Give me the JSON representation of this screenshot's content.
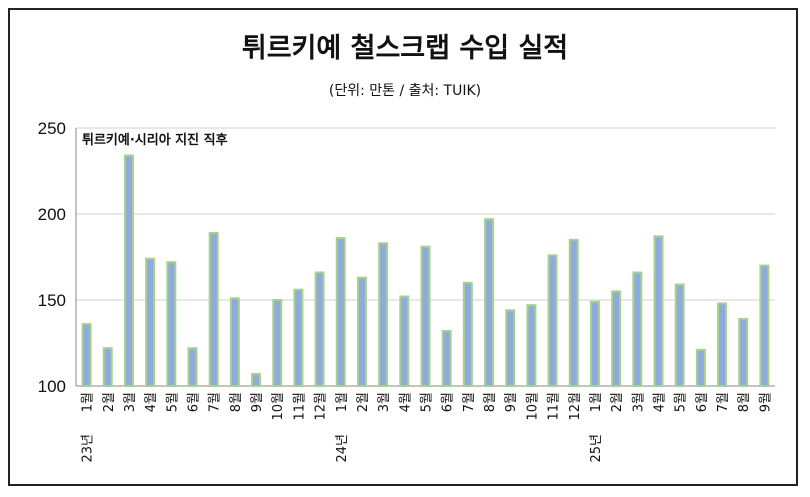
{
  "title": "튀르키예 철스크랩 수입 실적",
  "subtitle": "(단위: 만톤 / 출처: TUIK)",
  "chart_data": {
    "type": "bar",
    "title": "튀르키예 철스크랩 수입 실적",
    "subtitle": "(단위: 만톤 / 출처: TUIK)",
    "xlabel": "",
    "ylabel": "",
    "ylim": [
      100,
      250
    ],
    "yticks": [
      100,
      150,
      200,
      250
    ],
    "grid": true,
    "bar_color": "#8faadc",
    "bar_edge_color": "#a9d18e",
    "annotation": "튀르키예·시리아 지진 직후",
    "categories": [
      "1월",
      "2월",
      "3월",
      "4월",
      "5월",
      "6월",
      "7월",
      "8월",
      "9월",
      "10월",
      "11월",
      "12월",
      "1월",
      "2월",
      "3월",
      "4월",
      "5월",
      "6월",
      "7월",
      "8월",
      "9월",
      "10월",
      "11월",
      "12월",
      "1월",
      "2월",
      "3월",
      "4월",
      "5월",
      "6월",
      "7월",
      "8월",
      "9월"
    ],
    "year_labels": [
      {
        "index": 0,
        "label": "23년"
      },
      {
        "index": 12,
        "label": "24년"
      },
      {
        "index": 24,
        "label": "25년"
      }
    ],
    "values": [
      136,
      122,
      234,
      174,
      172,
      122,
      189,
      151,
      107,
      150,
      156,
      166,
      186,
      163,
      183,
      152,
      181,
      132,
      160,
      197,
      144,
      147,
      176,
      185,
      149,
      155,
      166,
      187,
      159,
      121,
      148,
      139,
      170
    ]
  }
}
